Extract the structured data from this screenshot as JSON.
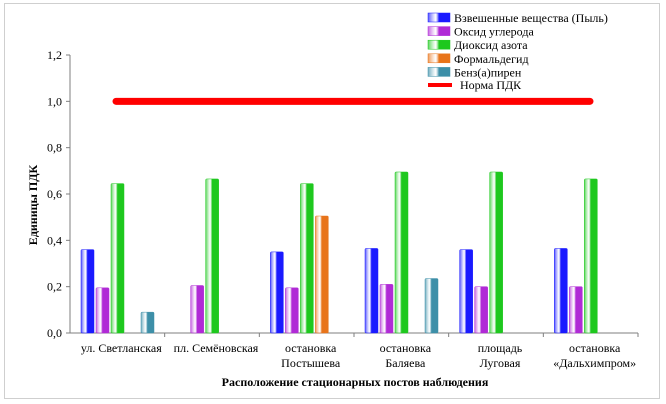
{
  "chart_data": {
    "type": "bar",
    "xlabel": "Расположение стационарных постов наблюдения",
    "ylabel": "Единицы ПДК",
    "ylim": [
      0,
      1.2
    ],
    "yticks": [
      "0,0",
      "0,2",
      "0,4",
      "0,6",
      "0,8",
      "1,0",
      "1,2"
    ],
    "categories": [
      [
        "ул. Светланская"
      ],
      [
        "пл. Семёновская"
      ],
      [
        "остановка",
        "Постышева"
      ],
      [
        "остановка",
        "Баляева"
      ],
      [
        "площадь",
        "Луговая"
      ],
      [
        "остановка",
        "«Дальхимпром»"
      ]
    ],
    "series": [
      {
        "name": "Взвешенные вещества (Пыль)",
        "color": "#1a1aff",
        "values": [
          0.36,
          null,
          0.35,
          0.365,
          0.36,
          0.365
        ]
      },
      {
        "name": "Оксид углерода",
        "color": "#b02ad6",
        "values": [
          0.195,
          0.205,
          0.195,
          0.21,
          0.2,
          0.2
        ]
      },
      {
        "name": "Диоксид азота",
        "color": "#1ec81e",
        "values": [
          0.645,
          0.665,
          0.645,
          0.695,
          0.695,
          0.665
        ]
      },
      {
        "name": "Формальдегид",
        "color": "#e8741a",
        "values": [
          null,
          null,
          0.505,
          null,
          null,
          null
        ]
      },
      {
        "name": "Бенз(а)пирен",
        "color": "#3d8fa8",
        "values": [
          0.09,
          null,
          null,
          0.235,
          null,
          null
        ]
      }
    ],
    "reference_line": {
      "name": "Норма ПДК",
      "value": 1.0,
      "color": "#ff0000"
    },
    "legend_position": "top-right",
    "grid": false
  }
}
